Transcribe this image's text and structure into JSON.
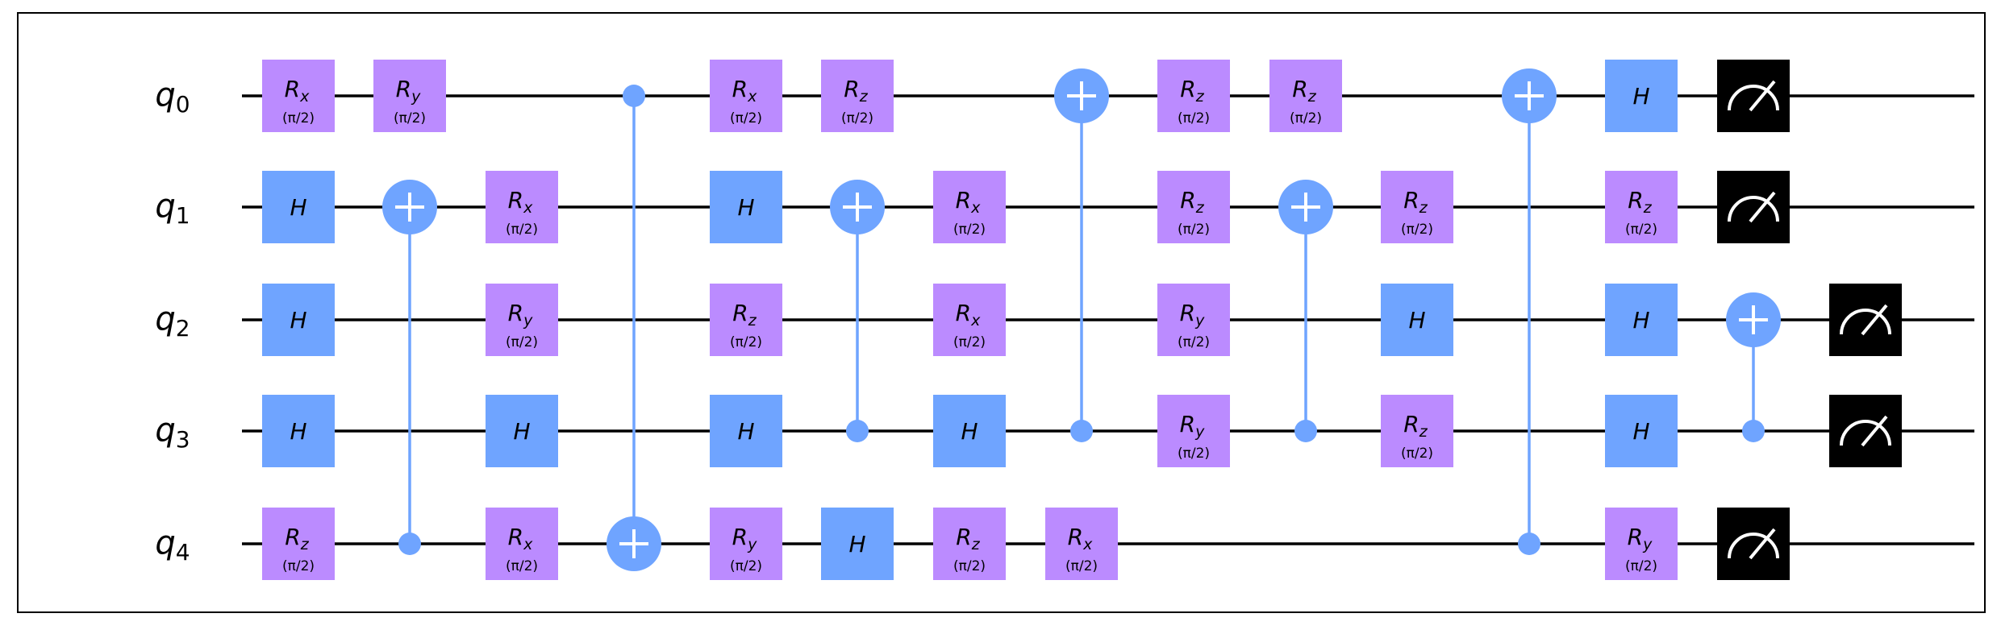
{
  "qubits": [
    {
      "label": "q",
      "index": "0"
    },
    {
      "label": "q",
      "index": "1"
    },
    {
      "label": "q",
      "index": "2"
    },
    {
      "label": "q",
      "index": "3"
    },
    {
      "label": "q",
      "index": "4"
    }
  ],
  "param": "(π/2)",
  "colors": {
    "rotation": "#bb8bff",
    "hadamard": "#6fa4ff",
    "control": "#6fa4ff",
    "measure": "#000000",
    "wire": "#000000"
  },
  "gates": [
    {
      "type": "rot",
      "axis": "x",
      "qubit": 0,
      "col": 0
    },
    {
      "type": "rot",
      "axis": "y",
      "qubit": 0,
      "col": 1
    },
    {
      "type": "cx",
      "control": 0,
      "target": 4,
      "col": 3
    },
    {
      "type": "rot",
      "axis": "x",
      "qubit": 0,
      "col": 4
    },
    {
      "type": "rot",
      "axis": "z",
      "qubit": 0,
      "col": 5
    },
    {
      "type": "cx",
      "control": 3,
      "target": 0,
      "col": 7
    },
    {
      "type": "rot",
      "axis": "z",
      "qubit": 0,
      "col": 8
    },
    {
      "type": "rot",
      "axis": "z",
      "qubit": 0,
      "col": 9
    },
    {
      "type": "cx",
      "control": 4,
      "target": 0,
      "col": 11
    },
    {
      "type": "h",
      "qubit": 0,
      "col": 12
    },
    {
      "type": "measure",
      "qubit": 0,
      "col": 13
    },
    {
      "type": "h",
      "qubit": 1,
      "col": 0
    },
    {
      "type": "cx",
      "control": 4,
      "target": 1,
      "col": 1
    },
    {
      "type": "rot",
      "axis": "x",
      "qubit": 1,
      "col": 2
    },
    {
      "type": "h",
      "qubit": 1,
      "col": 4
    },
    {
      "type": "cx",
      "control": 3,
      "target": 1,
      "col": 5
    },
    {
      "type": "rot",
      "axis": "x",
      "qubit": 1,
      "col": 6
    },
    {
      "type": "rot",
      "axis": "z",
      "qubit": 1,
      "col": 8
    },
    {
      "type": "cx",
      "control": 3,
      "target": 1,
      "col": 9
    },
    {
      "type": "rot",
      "axis": "z",
      "qubit": 1,
      "col": 10
    },
    {
      "type": "rot",
      "axis": "z",
      "qubit": 1,
      "col": 12
    },
    {
      "type": "measure",
      "qubit": 1,
      "col": 13
    },
    {
      "type": "h",
      "qubit": 2,
      "col": 0
    },
    {
      "type": "rot",
      "axis": "y",
      "qubit": 2,
      "col": 2
    },
    {
      "type": "rot",
      "axis": "z",
      "qubit": 2,
      "col": 4
    },
    {
      "type": "rot",
      "axis": "x",
      "qubit": 2,
      "col": 6
    },
    {
      "type": "rot",
      "axis": "y",
      "qubit": 2,
      "col": 8
    },
    {
      "type": "h",
      "qubit": 2,
      "col": 10
    },
    {
      "type": "h",
      "qubit": 2,
      "col": 12
    },
    {
      "type": "cx",
      "control": 3,
      "target": 2,
      "col": 13
    },
    {
      "type": "measure",
      "qubit": 2,
      "col": 14
    },
    {
      "type": "h",
      "qubit": 3,
      "col": 0
    },
    {
      "type": "h",
      "qubit": 3,
      "col": 2
    },
    {
      "type": "h",
      "qubit": 3,
      "col": 4
    },
    {
      "type": "h",
      "qubit": 3,
      "col": 6
    },
    {
      "type": "rot",
      "axis": "y",
      "qubit": 3,
      "col": 8
    },
    {
      "type": "rot",
      "axis": "z",
      "qubit": 3,
      "col": 10
    },
    {
      "type": "h",
      "qubit": 3,
      "col": 12
    },
    {
      "type": "measure",
      "qubit": 3,
      "col": 14
    },
    {
      "type": "rot",
      "axis": "z",
      "qubit": 4,
      "col": 0
    },
    {
      "type": "rot",
      "axis": "x",
      "qubit": 4,
      "col": 2
    },
    {
      "type": "rot",
      "axis": "y",
      "qubit": 4,
      "col": 4
    },
    {
      "type": "h",
      "qubit": 4,
      "col": 5
    },
    {
      "type": "rot",
      "axis": "z",
      "qubit": 4,
      "col": 6
    },
    {
      "type": "rot",
      "axis": "x",
      "qubit": 4,
      "col": 7
    },
    {
      "type": "rot",
      "axis": "y",
      "qubit": 4,
      "col": 12
    },
    {
      "type": "measure",
      "qubit": 4,
      "col": 13
    }
  ]
}
